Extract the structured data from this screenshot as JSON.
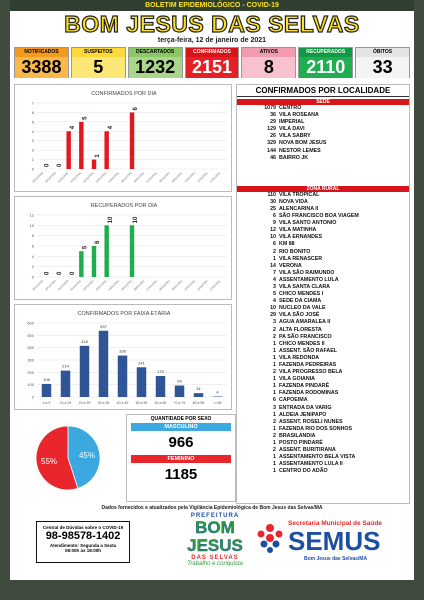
{
  "header": {
    "subtitle": "BOLETIM EPIDEMIOLÓGICO - COVID-19",
    "title": "BOM JESUS DAS SELVAS",
    "date": "terça-feira, 12 de janeiro de 2021"
  },
  "stats": [
    {
      "label": "NOTIFICADOS",
      "value": 3388
    },
    {
      "label": "SUSPEITOS",
      "value": 5
    },
    {
      "label": "DESCARTADOS",
      "value": 1232
    },
    {
      "label": "CONFIRMADOS",
      "value": 2151
    },
    {
      "label": "ATIVOS",
      "value": 8
    },
    {
      "label": "RECUPERADOS",
      "value": 2110
    },
    {
      "label": "ÓBITOS",
      "value": 33
    }
  ],
  "chart_data": [
    {
      "type": "bar",
      "title": "CONFIRMADOS POR DIA",
      "color": "#e3171e",
      "grid": true,
      "xtick_rotation": -45,
      "value_label_rotation": -90,
      "categories": [
        "29/12/2020",
        "30/12/2020",
        "31/12/2020",
        "01/01/2021",
        "02/01/2021",
        "03/01/2021",
        "04/01/2021",
        "05/01/2021",
        "06/01/2021",
        "07/01/2021",
        "08/01/2021",
        "09/01/2021",
        "10/01/2021",
        "11/01/2021",
        "12/01/2021"
      ],
      "values": [
        0,
        0,
        4,
        5,
        1,
        4,
        null,
        6,
        null,
        null,
        null,
        null,
        null,
        null,
        null
      ],
      "ylim": [
        0,
        7
      ],
      "yticks": [
        0,
        1,
        2,
        3,
        4,
        5,
        6,
        7
      ]
    },
    {
      "type": "bar",
      "title": "RECUPERADOS POR DIA",
      "color": "#1fae4b",
      "grid": true,
      "xtick_rotation": -45,
      "value_label_rotation": -90,
      "categories": [
        "29/12/2020",
        "30/12/2020",
        "31/12/2020",
        "01/01/2021",
        "02/01/2021",
        "03/01/2021",
        "04/01/2021",
        "05/01/2021",
        "06/01/2021",
        "07/01/2021",
        "08/01/2021",
        "09/01/2021",
        "10/01/2021",
        "11/01/2021",
        "12/01/2021"
      ],
      "values": [
        0,
        0,
        0,
        5,
        6,
        10,
        null,
        10,
        null,
        null,
        null,
        null,
        null,
        null,
        null
      ],
      "ylim": [
        0,
        12
      ],
      "yticks": [
        0,
        2,
        4,
        6,
        8,
        10,
        12
      ]
    },
    {
      "type": "bar",
      "title": "CONFIRMADOS POR FAIXA ETÁRIA",
      "color": "#2f5597",
      "grid": true,
      "xtick_rotation": 0,
      "value_label_rotation": 0,
      "categories": [
        "0 a 9",
        "10 a 19",
        "20 a 29",
        "30 a 39",
        "40 a 49",
        "50 a 59",
        "60 a 69",
        "70 a 79",
        "80 a 89",
        ">=90"
      ],
      "values": [
        106,
        214,
        415,
        537,
        336,
        241,
        170,
        93,
        31,
        4
      ],
      "ylim": [
        0,
        600
      ],
      "yticks": [
        0,
        100,
        200,
        300,
        400,
        500,
        600
      ]
    },
    {
      "type": "pie",
      "values": [
        45,
        55
      ],
      "value_labels": [
        "45%",
        "55%"
      ],
      "colors": [
        "#3ba9e0",
        "#e8262b"
      ]
    }
  ],
  "sex": {
    "title": "QUANTIDADE POR SEXO",
    "groups": [
      {
        "label": "MASCULINO",
        "value": 966,
        "color": "#3ba9e0"
      },
      {
        "label": "FEMININO",
        "value": 1185,
        "color": "#e8262b"
      }
    ]
  },
  "localidade": {
    "title": "CONFIRMADOS POR LOCALIDADE",
    "sections": [
      {
        "name": "SEDE",
        "rows": [
          [
            1079,
            "CENTRO"
          ],
          [
            36,
            "VILA ROSEANA"
          ],
          [
            29,
            "IMPERIAL"
          ],
          [
            129,
            "VILA DAVI"
          ],
          [
            26,
            "VILA SABRY"
          ],
          [
            329,
            "NOVA BOM JESUS"
          ],
          [
            144,
            "NESTOR LEMES"
          ],
          [
            46,
            "BAIRRO JK"
          ]
        ]
      },
      {
        "name": "ZONA RURAL",
        "rows": [
          [
            110,
            "VILA TROPICAL"
          ],
          [
            30,
            "NOVA VIDA"
          ],
          [
            25,
            "ALENCARINA II"
          ],
          [
            6,
            "SÃO FRANCISCO BOA VIAGEM"
          ],
          [
            9,
            "VILA SANTO ANTONIO"
          ],
          [
            12,
            "VILA MATINHA"
          ],
          [
            10,
            "VILA ERNANDES"
          ],
          [
            6,
            "KM 88"
          ],
          [
            2,
            "RIO BONITO"
          ],
          [
            1,
            "VILA RENASCER"
          ],
          [
            14,
            "VERONA"
          ],
          [
            7,
            "VILA SÃO RAIMUNDO"
          ],
          [
            4,
            "ASSENTAMENTO LULA"
          ],
          [
            3,
            "VILA SANTA CLARA"
          ],
          [
            5,
            "CHICO MENDES I"
          ],
          [
            4,
            "SEDE DA CIAMA"
          ],
          [
            10,
            "NUCLEO DA VALE"
          ],
          [
            29,
            "VILA SÃO JOSÉ"
          ],
          [
            3,
            "AGUA AMARALEA II"
          ],
          [
            2,
            "ALTA FLORESTA"
          ],
          [
            2,
            "PA SÃO FRANCISCO"
          ],
          [
            1,
            "CHICO MENDES II"
          ],
          [
            1,
            "ASSENT. SÃO RAFAEL"
          ],
          [
            1,
            "VILA REDONDA"
          ],
          [
            1,
            "FAZENDA PEDREIRAS"
          ],
          [
            2,
            "VILA PROGRESSO BELA"
          ],
          [
            1,
            "VILA GOIANIA"
          ],
          [
            1,
            "FAZENDA PINDARÉ"
          ],
          [
            1,
            "FAZENDA RODOMINAS"
          ],
          [
            6,
            "CAPOEIMA"
          ],
          [
            3,
            "ENTRADA DA VARIG"
          ],
          [
            1,
            "ALDEIA JENIPAPO"
          ],
          [
            2,
            "ASSENT. ROSELI NUNES"
          ],
          [
            1,
            "FAZENDA RIO DOS SONHOS"
          ],
          [
            2,
            "BRASILANDIA"
          ],
          [
            1,
            "POSTO PINDARÉ"
          ],
          [
            2,
            "ASSENT. BURITIRANA"
          ],
          [
            1,
            "ASSENTAMENTO BELA VISTA"
          ],
          [
            1,
            "ASSENTAMENTO LULA II"
          ],
          [
            1,
            "CENTRO DO ADÃO"
          ]
        ]
      }
    ]
  },
  "footer": {
    "note": "Dados fornecidos e atualizados pela Vigilância Epidemiológica de Bom Jesus das Selvas/MA",
    "phone_title": "Central de Dúvidas sobre o COVID-19",
    "phone": "98-98578-1402",
    "hours_days": "Atendimento: Segunda a Sexta",
    "hours": "08:00h às 18:00h",
    "logo_top": "PREFEITURA",
    "logo_name": "BOM JESUS",
    "logo_sub": "DAS SELVAS",
    "logo_slogan": "Trabalho e conquista",
    "semus_title": "Secretaria Municipal de Saúde",
    "semus": "SEMUS",
    "semus_sub": "Bom Jesus das Selvas/MA"
  }
}
